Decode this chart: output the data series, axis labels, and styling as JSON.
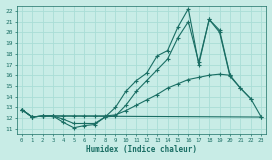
{
  "xlabel": "Humidex (Indice chaleur)",
  "xlim": [
    -0.5,
    23.5
  ],
  "ylim": [
    10.5,
    22.5
  ],
  "yticks": [
    11,
    12,
    13,
    14,
    15,
    16,
    17,
    18,
    19,
    20,
    21,
    22
  ],
  "xticks": [
    0,
    1,
    2,
    3,
    4,
    5,
    6,
    7,
    8,
    9,
    10,
    11,
    12,
    13,
    14,
    15,
    16,
    17,
    18,
    19,
    20,
    21,
    22,
    23
  ],
  "bg_color": "#c8ece6",
  "grid_color": "#aaddd6",
  "line_color": "#1a6e64",
  "series": [
    {
      "x": [
        0,
        1,
        2,
        3,
        4,
        5,
        6,
        7,
        8,
        9,
        10,
        11,
        12,
        13,
        14,
        15,
        16,
        17,
        18,
        19,
        20,
        21,
        22
      ],
      "y": [
        12.8,
        12.1,
        12.2,
        12.2,
        11.6,
        11.1,
        11.3,
        11.4,
        12.1,
        13.0,
        14.5,
        15.5,
        16.2,
        17.8,
        18.3,
        20.5,
        22.2,
        17.0,
        21.2,
        20.0,
        15.9,
        14.8,
        13.8
      ]
    },
    {
      "x": [
        0,
        1,
        2,
        3,
        4,
        5,
        6,
        7,
        8,
        9,
        10,
        11,
        12,
        13,
        14,
        15,
        16,
        17,
        18,
        19,
        20
      ],
      "y": [
        12.8,
        12.1,
        12.2,
        12.2,
        11.9,
        11.5,
        11.5,
        11.5,
        12.1,
        12.2,
        13.2,
        14.5,
        15.5,
        16.5,
        17.5,
        19.5,
        21.0,
        17.2,
        21.2,
        20.2,
        16.0
      ]
    },
    {
      "x": [
        0,
        1,
        2,
        3,
        23
      ],
      "y": [
        12.8,
        12.1,
        12.2,
        12.2,
        12.1
      ]
    },
    {
      "x": [
        0,
        1,
        2,
        3,
        4,
        5,
        6,
        7,
        8,
        9,
        10,
        11,
        12,
        13,
        14,
        15,
        16,
        17,
        18,
        19,
        20,
        21,
        22,
        23
      ],
      "y": [
        12.8,
        12.1,
        12.2,
        12.2,
        12.2,
        12.2,
        12.2,
        12.2,
        12.2,
        12.3,
        12.7,
        13.2,
        13.7,
        14.2,
        14.8,
        15.2,
        15.6,
        15.8,
        16.0,
        16.1,
        16.0,
        14.8,
        13.8,
        12.1
      ]
    }
  ]
}
